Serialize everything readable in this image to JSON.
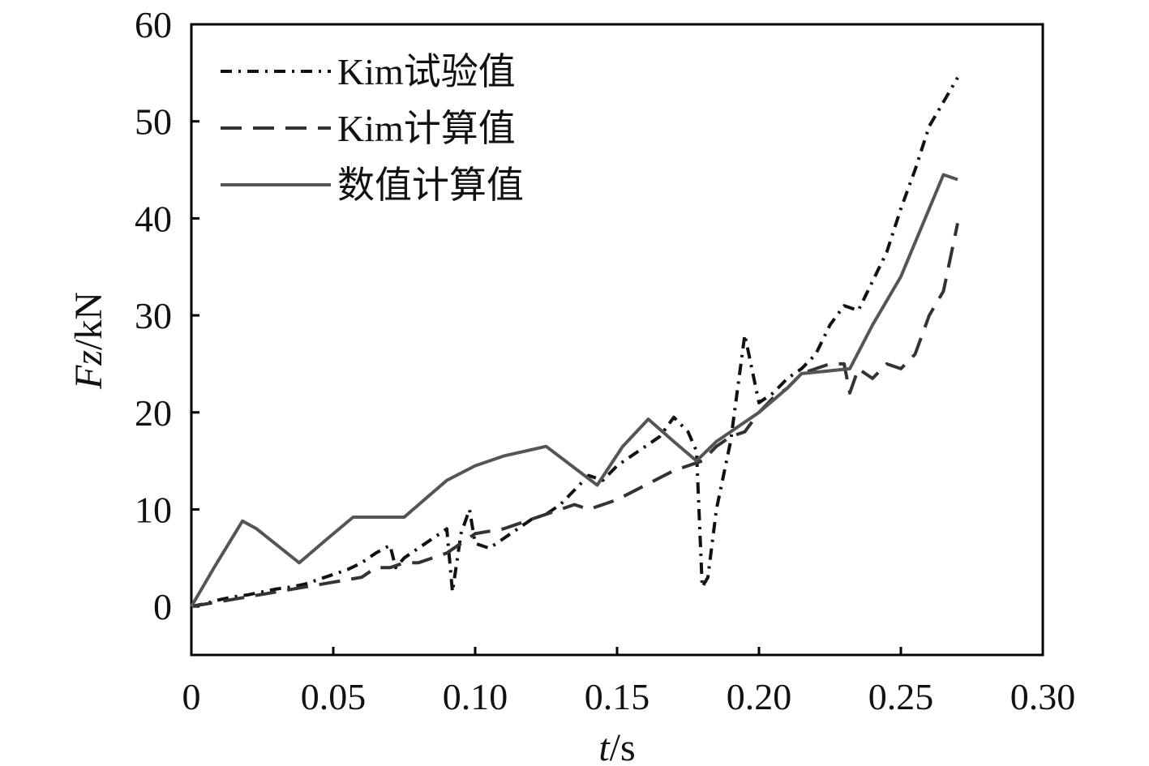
{
  "chart_data": {
    "type": "line",
    "title": "",
    "xlabel": "t/s",
    "ylabel": "Fz/kN",
    "xlim": [
      0,
      0.3
    ],
    "ylim": [
      -5,
      60
    ],
    "xticks": [
      "0",
      "0.05",
      "0.10",
      "0.15",
      "0.20",
      "0.25",
      "0.30"
    ],
    "xtick_values": [
      0,
      0.05,
      0.1,
      0.15,
      0.2,
      0.25,
      0.3
    ],
    "yticks": [
      "0",
      "10",
      "20",
      "30",
      "40",
      "50",
      "60"
    ],
    "ytick_values": [
      0,
      10,
      20,
      30,
      40,
      50,
      60
    ],
    "grid": false,
    "legend_position": "top-left",
    "series": [
      {
        "name": "Kim试验值",
        "style": "dash-dot",
        "color": "#111111",
        "x": [
          0,
          0.005,
          0.01,
          0.015,
          0.02,
          0.025,
          0.03,
          0.035,
          0.04,
          0.045,
          0.05,
          0.055,
          0.06,
          0.065,
          0.07,
          0.072,
          0.075,
          0.08,
          0.085,
          0.09,
          0.092,
          0.095,
          0.098,
          0.1,
          0.105,
          0.11,
          0.115,
          0.12,
          0.125,
          0.13,
          0.135,
          0.14,
          0.145,
          0.15,
          0.155,
          0.16,
          0.165,
          0.17,
          0.175,
          0.178,
          0.18,
          0.182,
          0.185,
          0.19,
          0.195,
          0.2,
          0.205,
          0.21,
          0.215,
          0.22,
          0.225,
          0.23,
          0.235,
          0.24,
          0.245,
          0.25,
          0.255,
          0.26,
          0.265,
          0.27
        ],
        "y": [
          0,
          0.3,
          0.7,
          1.0,
          1.2,
          1.5,
          1.8,
          2.0,
          2.3,
          2.8,
          3.3,
          3.8,
          4.5,
          5.5,
          6.3,
          4.0,
          5.0,
          6.0,
          7.0,
          8.0,
          1.5,
          7.5,
          10.0,
          6.5,
          6.0,
          7.0,
          8.0,
          9.0,
          9.5,
          10.5,
          12.0,
          13.5,
          13.0,
          14.5,
          15.5,
          16.5,
          17.5,
          19.5,
          18.0,
          16.0,
          2.0,
          3.0,
          10.0,
          17.0,
          28.0,
          21.0,
          22.0,
          23.5,
          24.5,
          26.0,
          29.0,
          31.0,
          30.5,
          33.5,
          36.5,
          41.0,
          45.0,
          49.5,
          52.0,
          54.5
        ]
      },
      {
        "name": "Kim计算值",
        "style": "dashed",
        "color": "#333333",
        "x": [
          0,
          0.01,
          0.02,
          0.03,
          0.04,
          0.05,
          0.06,
          0.065,
          0.07,
          0.075,
          0.08,
          0.09,
          0.1,
          0.11,
          0.12,
          0.13,
          0.135,
          0.14,
          0.145,
          0.15,
          0.16,
          0.17,
          0.175,
          0.18,
          0.185,
          0.19,
          0.195,
          0.2,
          0.205,
          0.21,
          0.215,
          0.22,
          0.225,
          0.23,
          0.232,
          0.235,
          0.24,
          0.245,
          0.25,
          0.255,
          0.26,
          0.265,
          0.27
        ],
        "y": [
          0,
          0.5,
          1.0,
          1.5,
          2.0,
          2.5,
          3.0,
          4.0,
          4.0,
          4.5,
          4.5,
          5.5,
          7.5,
          8.0,
          9.0,
          10.0,
          10.5,
          10.0,
          10.5,
          11.0,
          12.5,
          14.0,
          14.5,
          15.0,
          16.5,
          17.5,
          18.0,
          20.0,
          21.5,
          22.5,
          24.0,
          24.5,
          25.0,
          25.0,
          22.0,
          24.5,
          23.5,
          25.0,
          24.5,
          26.0,
          30.0,
          32.5,
          39.5
        ]
      },
      {
        "name": "数值计算值",
        "style": "solid",
        "color": "#555555",
        "x": [
          0,
          0.008,
          0.018,
          0.023,
          0.038,
          0.048,
          0.057,
          0.075,
          0.09,
          0.1,
          0.11,
          0.125,
          0.143,
          0.152,
          0.161,
          0.17,
          0.178,
          0.185,
          0.2,
          0.21,
          0.215,
          0.222,
          0.232,
          0.24,
          0.25,
          0.265,
          0.27
        ],
        "y": [
          0,
          4.0,
          8.8,
          8.0,
          4.5,
          7.0,
          9.2,
          9.2,
          13.0,
          14.5,
          15.5,
          16.5,
          12.5,
          16.5,
          19.3,
          17.0,
          15.0,
          17.0,
          20.0,
          22.5,
          24.0,
          24.2,
          24.5,
          29.0,
          34.0,
          44.5,
          44.0
        ]
      }
    ]
  }
}
